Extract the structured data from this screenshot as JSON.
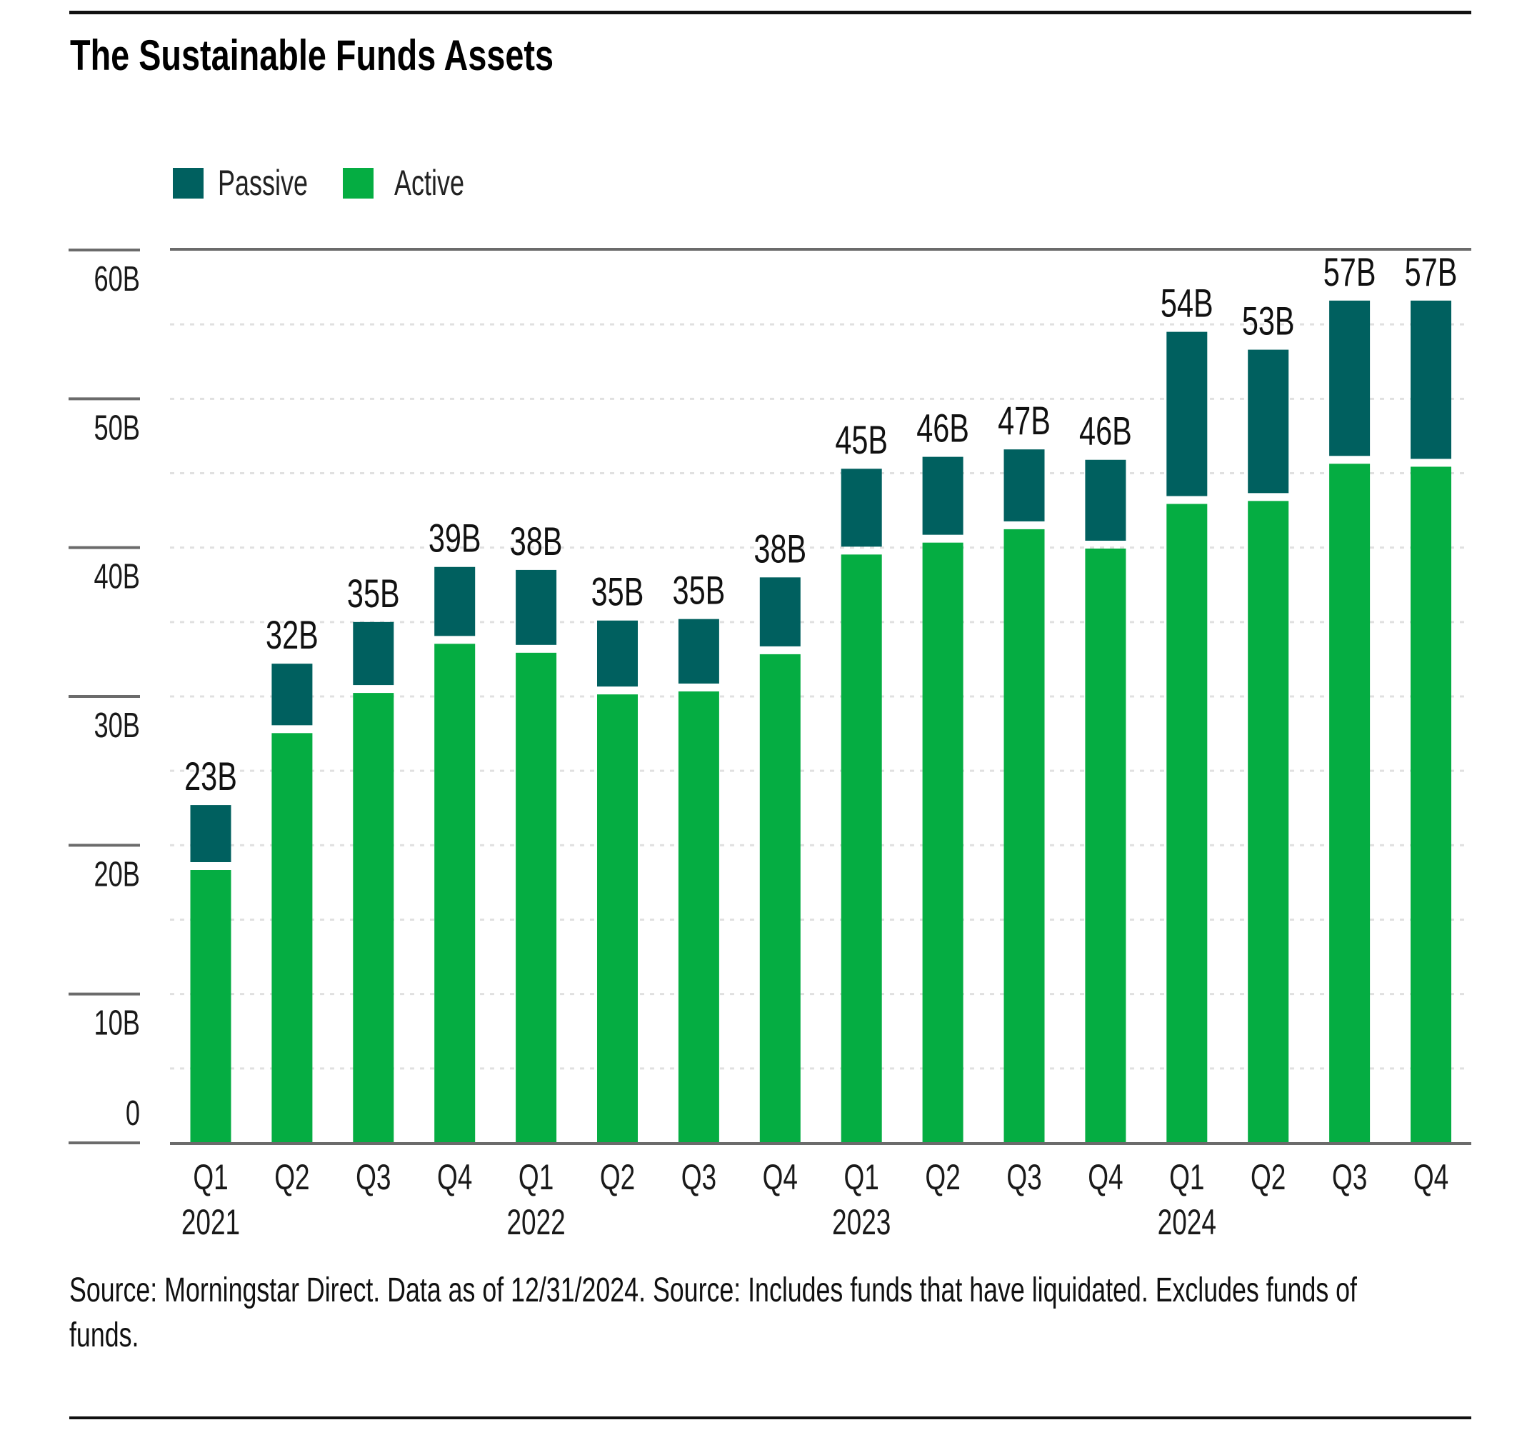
{
  "title": "The Sustainable Funds Assets",
  "source": "Source: Morningstar Direct. Data as of 12/31/2024. Source: Includes funds that have liquidated. Excludes funds of funds.",
  "colors": {
    "passive": "#00605F",
    "active": "#05AD42",
    "gridline": "#E0E0E0",
    "axis": "#6B6B6B",
    "text": "#1A1A1A"
  },
  "legend": [
    {
      "label": "Passive",
      "color": "#00605F"
    },
    {
      "label": "Active",
      "color": "#05AD42"
    }
  ],
  "chart_data": {
    "type": "bar",
    "stacked": true,
    "title": "The Sustainable Funds Assets",
    "xlabel": "",
    "ylabel": "",
    "ylim": [
      0,
      60
    ],
    "yticks": [
      0,
      10,
      20,
      30,
      40,
      50,
      60
    ],
    "ytick_labels": [
      "0",
      "10B",
      "20B",
      "30B",
      "40B",
      "50B",
      "60B"
    ],
    "minor_gridlines_every": 5,
    "grid": true,
    "legend_position": "top-left",
    "categories": [
      "Q1",
      "Q2",
      "Q3",
      "Q4",
      "Q1",
      "Q2",
      "Q3",
      "Q4",
      "Q1",
      "Q2",
      "Q3",
      "Q4",
      "Q1",
      "Q2",
      "Q3",
      "Q4"
    ],
    "year_labels": [
      {
        "index": 0,
        "label": "2021"
      },
      {
        "index": 4,
        "label": "2022"
      },
      {
        "index": 8,
        "label": "2023"
      },
      {
        "index": 12,
        "label": "2024"
      }
    ],
    "series": [
      {
        "name": "Active",
        "color": "#05AD42",
        "values": [
          18.6,
          27.8,
          30.5,
          33.8,
          33.2,
          30.4,
          30.6,
          33.1,
          39.8,
          40.6,
          41.5,
          40.2,
          43.2,
          43.4,
          45.9,
          45.7
        ]
      },
      {
        "name": "Passive",
        "color": "#00605F",
        "values": [
          4.1,
          4.4,
          4.5,
          4.9,
          5.3,
          4.7,
          4.6,
          4.9,
          5.5,
          5.5,
          5.1,
          5.7,
          11.3,
          9.9,
          10.7,
          10.9
        ]
      }
    ],
    "totals": [
      22.7,
      32.2,
      35.0,
      38.7,
      38.5,
      35.1,
      35.2,
      38.0,
      45.3,
      46.1,
      46.6,
      45.9,
      54.5,
      53.3,
      56.6,
      56.6
    ],
    "data_labels": [
      "23B",
      "32B",
      "35B",
      "39B",
      "38B",
      "35B",
      "35B",
      "38B",
      "45B",
      "46B",
      "47B",
      "46B",
      "54B",
      "53B",
      "57B",
      "57B"
    ]
  }
}
